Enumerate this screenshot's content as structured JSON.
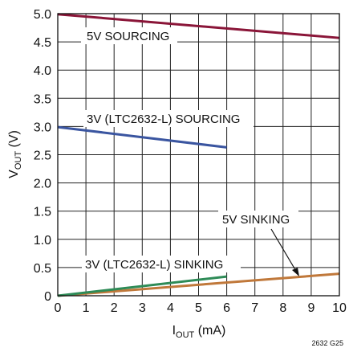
{
  "chart_data": {
    "type": "line",
    "xlabel": "I",
    "xlabel_sub": "OUT",
    "xlabel_unit": " (mA)",
    "ylabel": "V",
    "ylabel_sub": "OUT",
    "ylabel_unit": " (V)",
    "xlim": [
      0,
      10
    ],
    "ylim": [
      0,
      5
    ],
    "x_ticks": [
      "0",
      "1",
      "2",
      "3",
      "4",
      "5",
      "6",
      "7",
      "8",
      "9",
      "10"
    ],
    "y_ticks": [
      "0",
      "0.5",
      "1.0",
      "1.5",
      "2.0",
      "2.5",
      "3.0",
      "3.5",
      "4.0",
      "4.5",
      "5.0"
    ],
    "grid": true,
    "series": [
      {
        "name": "5V SOURCING",
        "color": "#8a1538",
        "x": [
          0,
          10
        ],
        "y": [
          4.99,
          4.57
        ]
      },
      {
        "name": "3V (LTC2632-L) SOURCING",
        "color": "#3a55a0",
        "x": [
          0,
          6
        ],
        "y": [
          2.99,
          2.63
        ]
      },
      {
        "name": "5V SINKING",
        "color": "#c0783a",
        "x": [
          0,
          10
        ],
        "y": [
          0.0,
          0.39
        ]
      },
      {
        "name": "3V (LTC2632-L) SINKING",
        "color": "#2e8b57",
        "x": [
          0,
          6
        ],
        "y": [
          0.0,
          0.34
        ]
      }
    ],
    "annotations": {
      "five_v_sourcing": "5V SOURCING",
      "three_v_sourcing": "3V (LTC2632-L) SOURCING",
      "five_v_sinking": "5V SINKING",
      "three_v_sinking": "3V (LTC2632-L) SINKING"
    },
    "figure_id": "2632 G25"
  }
}
